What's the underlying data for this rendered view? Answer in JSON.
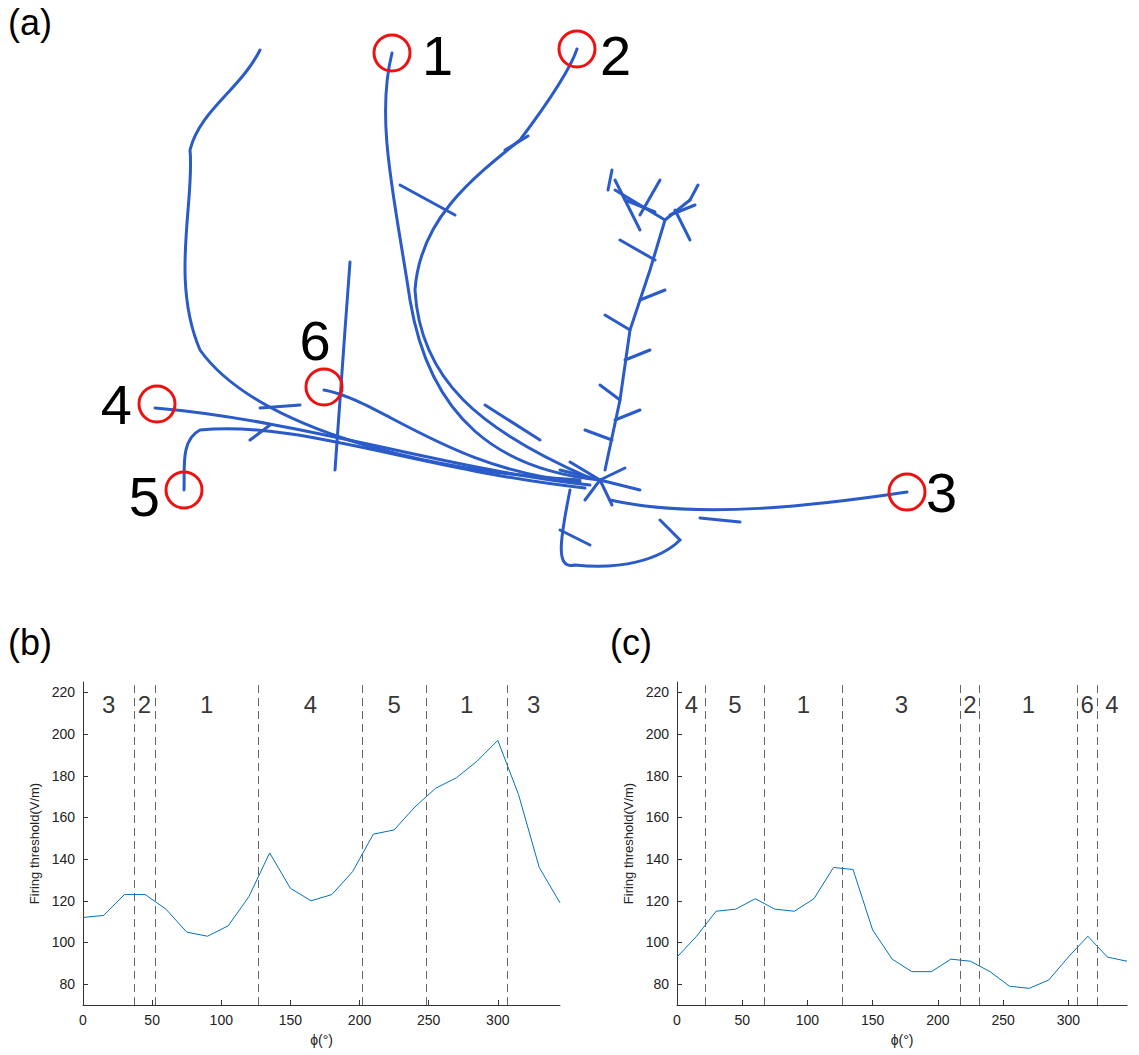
{
  "diagram": {
    "panel": "(a)",
    "markers": [
      "1",
      "2",
      "3",
      "4",
      "5",
      "6"
    ]
  },
  "chart_data": [
    {
      "panel": "(b)",
      "type": "line",
      "color": "#0072bd",
      "x_label": "ϕ(°)",
      "y_label": "Firing threshold(V/m)",
      "x": [
        0,
        15,
        30,
        45,
        60,
        75,
        90,
        105,
        120,
        135,
        150,
        165,
        180,
        195,
        210,
        225,
        240,
        255,
        270,
        285,
        300,
        315,
        330,
        345
      ],
      "values": [
        112,
        113,
        123,
        123,
        116,
        105,
        103,
        108,
        122,
        143,
        126,
        120,
        123,
        134,
        152,
        154,
        165,
        174,
        179,
        187,
        197,
        171,
        136,
        119
      ],
      "xlim": [
        0,
        345
      ],
      "xticks": [
        0,
        50,
        100,
        150,
        200,
        250,
        300
      ],
      "ylim": [
        70,
        225
      ],
      "yticks": [
        80,
        100,
        120,
        140,
        160,
        180,
        200,
        220
      ],
      "dividers": [
        37,
        52,
        127,
        202,
        248,
        307
      ],
      "region_labels": [
        "3",
        "2",
        "1",
        "4",
        "5",
        "1",
        "3"
      ]
    },
    {
      "panel": "(c)",
      "type": "line",
      "color": "#0072bd",
      "x_label": "ϕ(°)",
      "y_label": "Firing threshold(V/m)",
      "x": [
        0,
        15,
        30,
        45,
        60,
        75,
        90,
        105,
        120,
        135,
        150,
        165,
        180,
        195,
        210,
        225,
        240,
        255,
        270,
        285,
        300,
        315,
        330,
        345
      ],
      "values": [
        93,
        103,
        115,
        116,
        121,
        116,
        115,
        121,
        136,
        135,
        106,
        92,
        86,
        86,
        92,
        91,
        86,
        79,
        78,
        82,
        93,
        103,
        93,
        91
      ],
      "xlim": [
        0,
        345
      ],
      "xticks": [
        0,
        50,
        100,
        150,
        200,
        250,
        300
      ],
      "ylim": [
        70,
        225
      ],
      "yticks": [
        80,
        100,
        120,
        140,
        160,
        180,
        200,
        220
      ],
      "dividers": [
        22,
        67,
        127,
        217,
        232,
        307,
        322
      ],
      "region_labels": [
        "4",
        "5",
        "1",
        "3",
        "2",
        "1",
        "6",
        "4"
      ]
    }
  ]
}
